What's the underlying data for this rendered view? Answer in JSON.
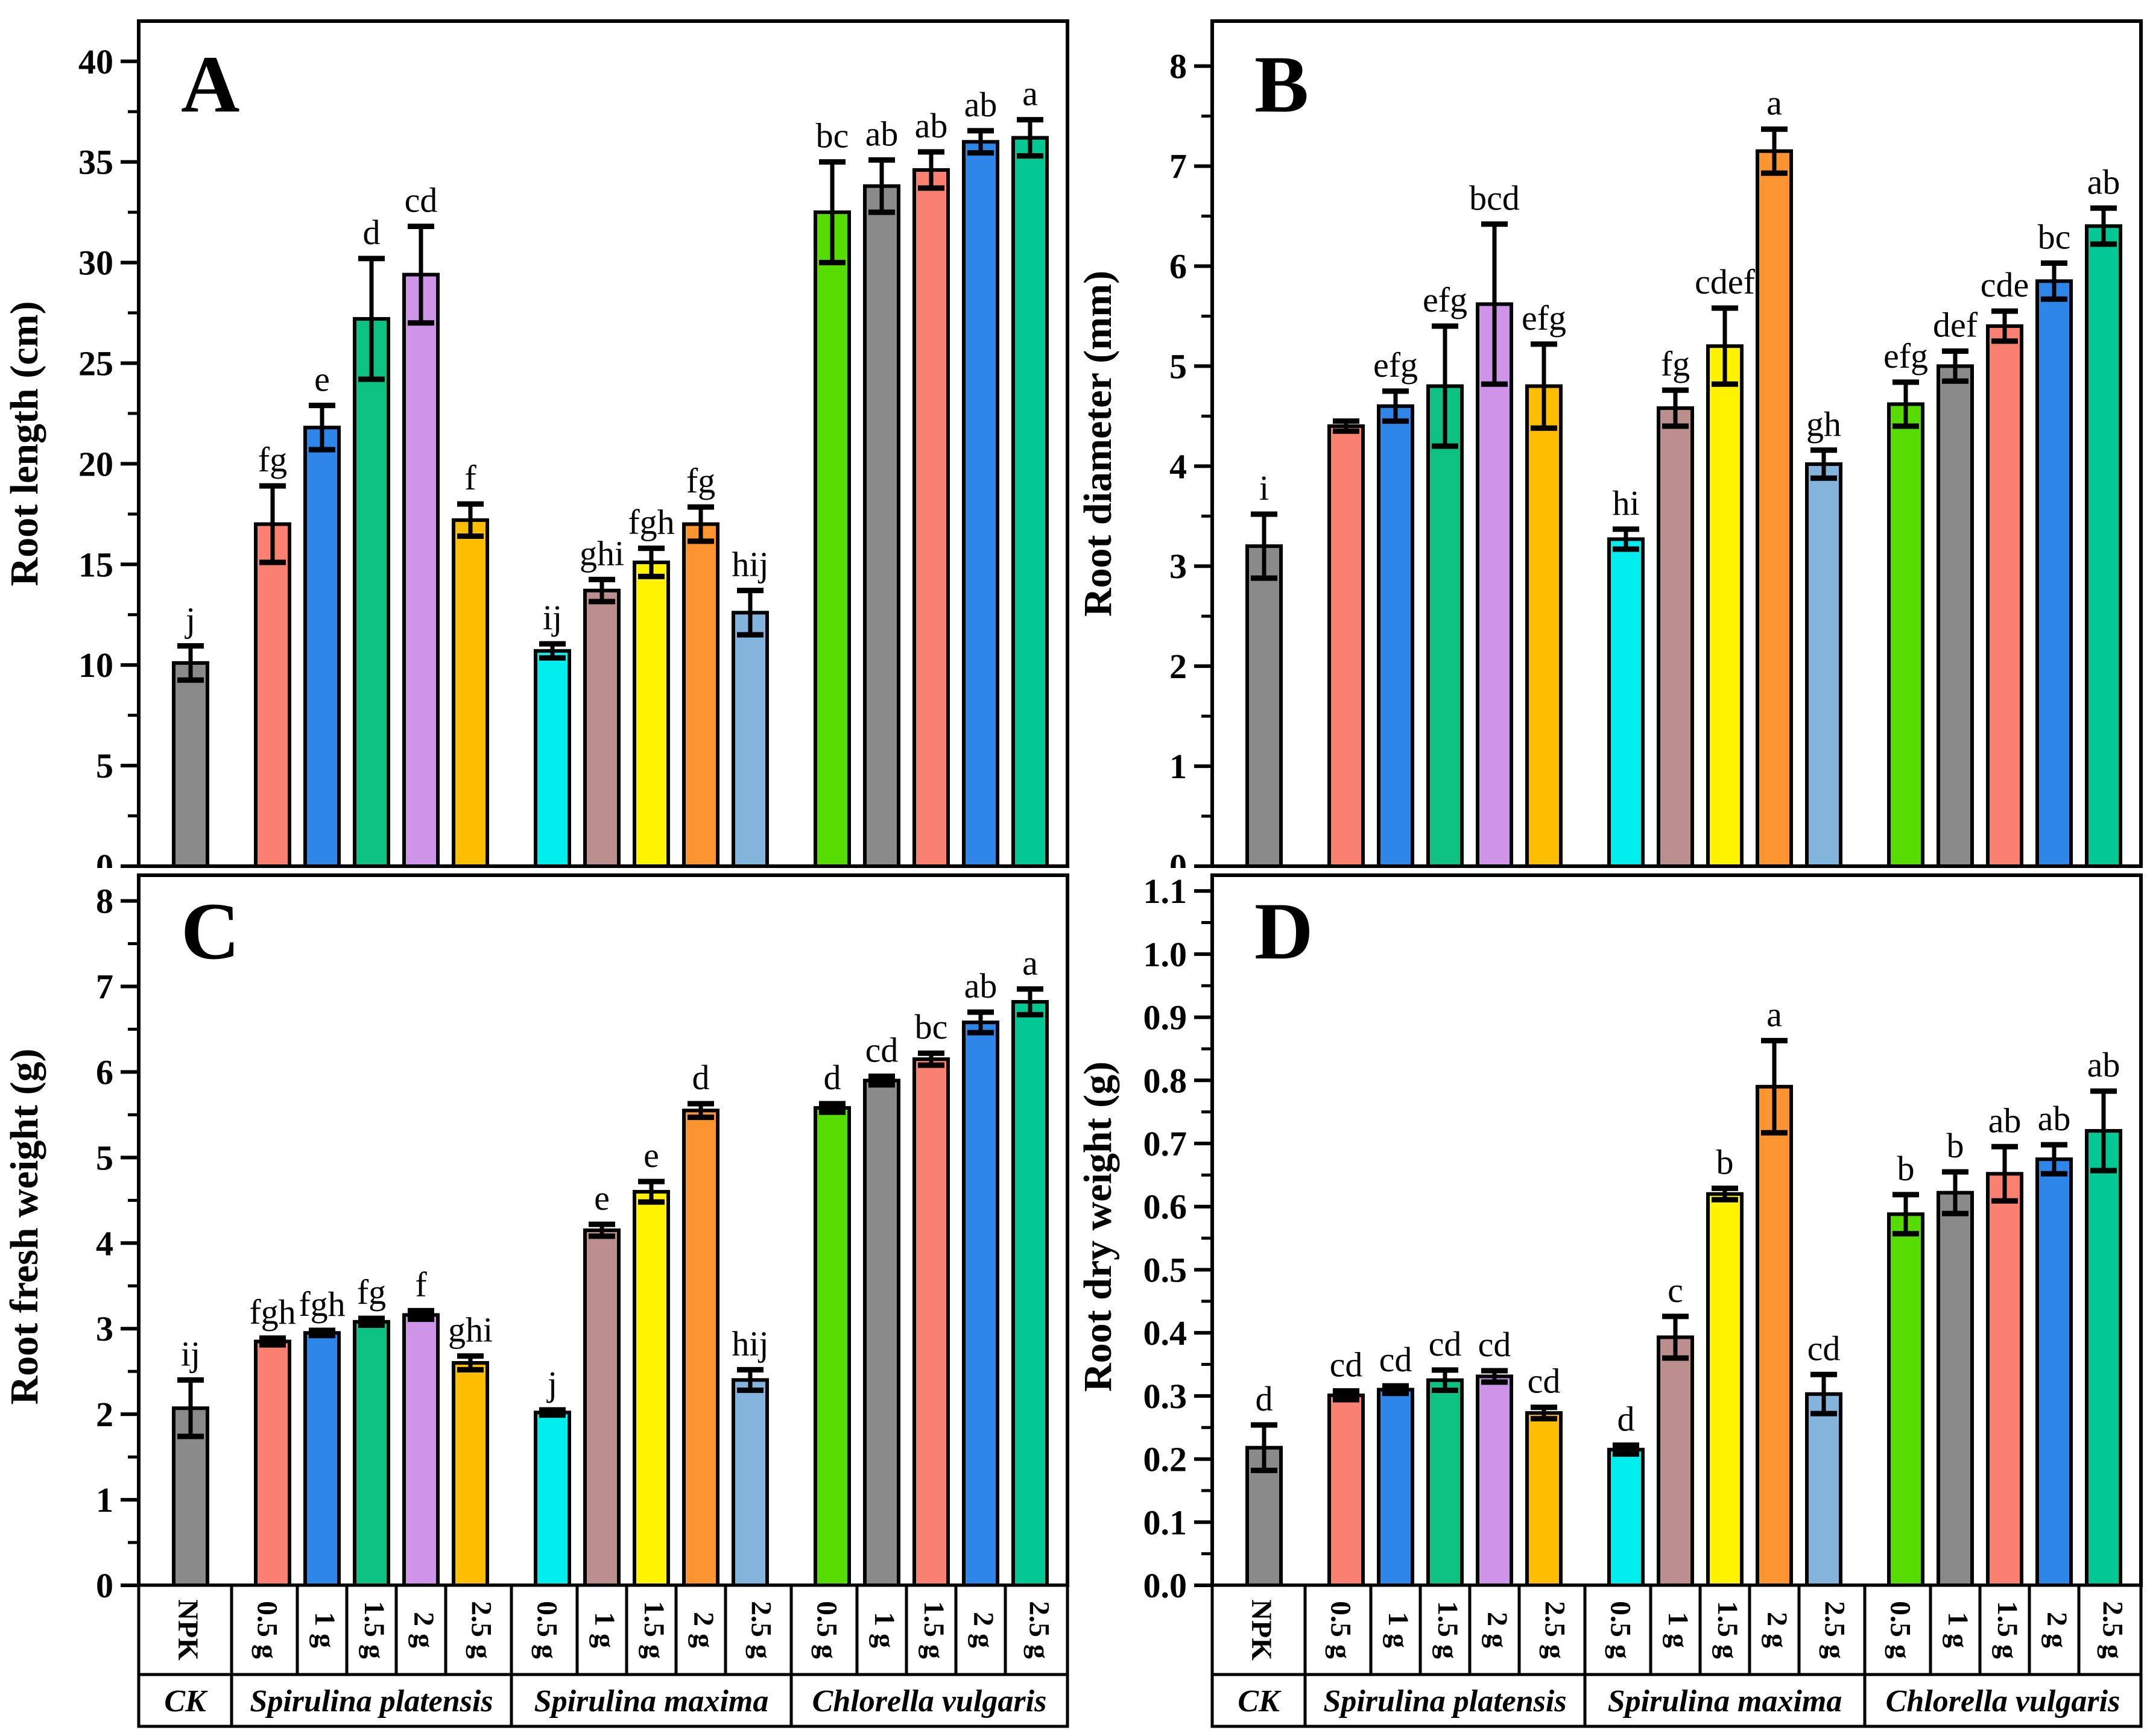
{
  "chart_data": [
    {
      "type": "bar",
      "panel_letter": "A",
      "ylabel": "Root length (cm)",
      "ylim": [
        0,
        42
      ],
      "y_tick_max": 40,
      "y_major": 5,
      "y_minor": 2.5,
      "decimals": 0,
      "grid": "off",
      "values": [
        10.1,
        17.0,
        21.8,
        27.2,
        29.4,
        17.2,
        10.7,
        13.7,
        15.1,
        17.0,
        12.6,
        32.5,
        33.8,
        34.6,
        36.0,
        36.2
      ],
      "errors": [
        0.85,
        1.9,
        1.1,
        3.0,
        2.4,
        0.8,
        0.35,
        0.55,
        0.7,
        0.85,
        1.1,
        2.5,
        1.3,
        0.9,
        0.55,
        0.9
      ],
      "letters": [
        "j",
        "fg",
        "e",
        "d",
        "cd",
        "f",
        "ij",
        "ghi",
        "fgh",
        "fg",
        "hij",
        "bc",
        "ab",
        "ab",
        "ab",
        "a"
      ]
    },
    {
      "type": "bar",
      "panel_letter": "B",
      "ylabel": "Root diameter (mm)",
      "ylim": [
        0,
        8.45
      ],
      "y_tick_max": 8,
      "y_major": 1,
      "y_minor": 0.5,
      "decimals": 0,
      "grid": "off",
      "values": [
        3.2,
        4.4,
        4.6,
        4.8,
        5.62,
        4.8,
        3.27,
        4.58,
        5.2,
        7.15,
        4.02,
        4.62,
        5.0,
        5.4,
        5.85,
        6.4
      ],
      "errors": [
        0.32,
        0.05,
        0.15,
        0.6,
        0.8,
        0.42,
        0.1,
        0.18,
        0.38,
        0.22,
        0.14,
        0.22,
        0.15,
        0.15,
        0.18,
        0.18
      ],
      "letters": [
        "i",
        "",
        "efg",
        "efg",
        "bcd",
        "efg",
        "hi",
        "fg",
        "cdef",
        "a",
        "gh",
        "efg",
        "def",
        "cde",
        "bc",
        "ab"
      ]
    },
    {
      "type": "bar",
      "panel_letter": "C",
      "ylabel": "Root fresh weight (g)",
      "ylim": [
        0,
        8.3
      ],
      "y_tick_max": 8,
      "y_major": 1,
      "y_minor": 0.5,
      "decimals": 0,
      "grid": "off",
      "values": [
        2.07,
        2.85,
        2.95,
        3.08,
        3.16,
        2.6,
        2.02,
        4.15,
        4.6,
        5.55,
        2.4,
        5.58,
        5.9,
        6.15,
        6.58,
        6.82
      ],
      "errors": [
        0.33,
        0.04,
        0.03,
        0.04,
        0.05,
        0.08,
        0.03,
        0.07,
        0.12,
        0.08,
        0.12,
        0.05,
        0.05,
        0.07,
        0.12,
        0.15
      ],
      "letters": [
        "ij",
        "fgh",
        "fgh",
        "fg",
        "f",
        "ghi",
        "j",
        "e",
        "e",
        "d",
        "hij",
        "d",
        "cd",
        "bc",
        "ab",
        "a"
      ]
    },
    {
      "type": "bar",
      "panel_letter": "D",
      "ylabel": "Root dry weight (g)",
      "ylim": [
        0,
        1.125
      ],
      "y_tick_max": 1.1,
      "y_major": 0.1,
      "y_minor": 0.05,
      "decimals": 1,
      "grid": "off",
      "values": [
        0.218,
        0.301,
        0.31,
        0.325,
        0.331,
        0.273,
        0.215,
        0.393,
        0.62,
        0.79,
        0.303,
        0.588,
        0.622,
        0.652,
        0.675,
        0.72
      ],
      "errors": [
        0.036,
        0.007,
        0.006,
        0.016,
        0.009,
        0.009,
        0.007,
        0.033,
        0.009,
        0.073,
        0.031,
        0.031,
        0.033,
        0.043,
        0.023,
        0.063
      ],
      "letters": [
        "d",
        "cd",
        "cd",
        "cd",
        "cd",
        "cd",
        "d",
        "c",
        "b",
        "a",
        "cd",
        "b",
        "b",
        "ab",
        "ab",
        "ab"
      ]
    }
  ],
  "x_axis": {
    "categories": [
      "NPK",
      "0.5 g",
      "1 g",
      "1.5 g",
      "2 g",
      "2.5 g",
      "0.5 g",
      "1 g",
      "1.5 g",
      "2 g",
      "2.5 g",
      "0.5 g",
      "1 g",
      "1.5 g",
      "2 g",
      "2.5 g"
    ],
    "groups": [
      {
        "label": "CK",
        "span": 1
      },
      {
        "label": "Spirulina platensis",
        "span": 5
      },
      {
        "label": "Spirulina maxima",
        "span": 5
      },
      {
        "label": "Chlorella vulgaris",
        "span": 5
      }
    ]
  },
  "style": {
    "bar_colors": [
      "#8A8A8A",
      "#FA8072",
      "#2E86E8",
      "#0DC183",
      "#CD94E8",
      "#FDBE02",
      "#00EEEE",
      "#BC8F8F",
      "#FFF300",
      "#FC9530",
      "#82B4DC",
      "#57DC02",
      "#8A8A8A",
      "#FA8072",
      "#2E86E8",
      "#04C893"
    ],
    "bar_edge_color": "#000000",
    "axis_color": "#000000",
    "background": "#FFFFFF"
  }
}
